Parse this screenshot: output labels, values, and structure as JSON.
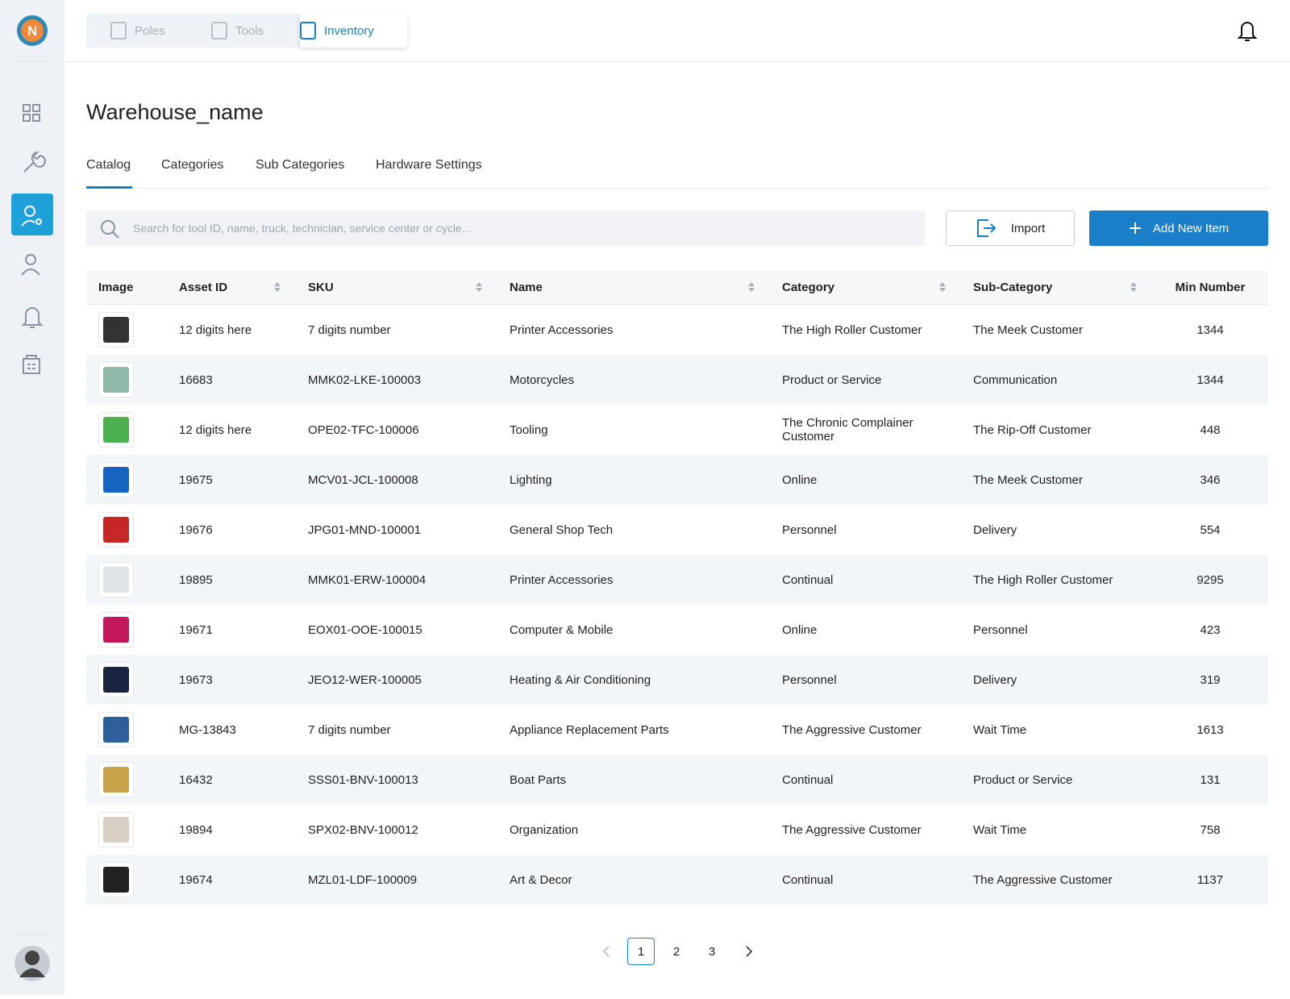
{
  "nav": {
    "tabs": [
      "Poles",
      "Tools",
      "Inventory"
    ]
  },
  "page": {
    "title": "Warehouse_name",
    "tabs": [
      "Catalog",
      "Categories",
      "Sub Categories",
      "Hardware Settings"
    ]
  },
  "search": {
    "placeholder": "Search for tool ID, name, truck, technician, service center or cycle..."
  },
  "buttons": {
    "import": "Import",
    "add": "Add New Item"
  },
  "table": {
    "headers": [
      "Image",
      "Asset ID",
      "SKU",
      "Name",
      "Category",
      "Sub-Category",
      "Min Number"
    ],
    "rows": [
      [
        "12 digits here",
        "7 digits number",
        "Printer Accessories",
        "The High Roller Customer",
        "The Meek Customer",
        1344
      ],
      [
        "16683",
        "MMK02-LKE-100003",
        "Motorcycles",
        "Product or Service",
        "Communication",
        1344
      ],
      [
        "12 digits here",
        "OPE02-TFC-100006",
        "Tooling",
        "The Chronic Complainer Customer",
        "The Rip-Off Customer",
        448
      ],
      [
        "19675",
        "MCV01-JCL-100008",
        "Lighting",
        "Online",
        "The Meek Customer",
        346
      ],
      [
        "19676",
        "JPG01-MND-100001",
        "General Shop Tech",
        "Personnel",
        "Delivery",
        554
      ],
      [
        "19895",
        "MMK01-ERW-100004",
        "Printer Accessories",
        "Continual",
        "The High Roller Customer",
        9295
      ],
      [
        "19671",
        "EOX01-OOE-100015",
        "Computer & Mobile",
        "Online",
        "Personnel",
        423
      ],
      [
        "19673",
        "JEO12-WER-100005",
        "Heating & Air Conditioning",
        "Personnel",
        "Delivery",
        319
      ],
      [
        "MG-13843",
        "7 digits number",
        "Appliance Replacement Parts",
        "The Aggressive Customer",
        "Wait Time",
        1613
      ],
      [
        "16432",
        "SSS01-BNV-100013",
        "Boat Parts",
        "Continual",
        "Product or Service",
        131
      ],
      [
        "19894",
        "SPX02-BNV-100012",
        "Organization",
        "The Aggressive Customer",
        "Wait Time",
        758
      ],
      [
        "19674",
        "MZL01-LDF-100009",
        "Art & Decor",
        "Continual",
        "The Aggressive Customer",
        1137
      ]
    ]
  },
  "pagination": {
    "pages": [
      1,
      2,
      3
    ]
  }
}
